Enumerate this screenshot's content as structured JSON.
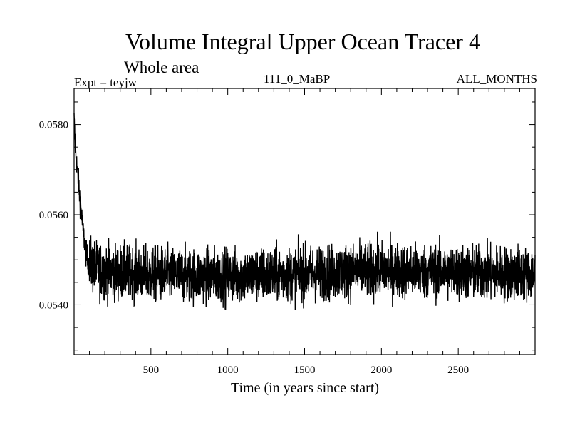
{
  "header": {
    "title": "Volume Integral Upper Ocean Tracer 4",
    "subtitle": "Whole area",
    "expt_label": "Expt = teyjw",
    "run_label": "111_0_MaBP",
    "months_label": "ALL_MONTHS"
  },
  "colors": {
    "line": "#000000",
    "axis": "#000000",
    "background": "#ffffff"
  },
  "chart_data": {
    "type": "line",
    "title": "Volume Integral Upper Ocean Tracer 4",
    "subtitle": "Whole area",
    "xlabel": "Time (in years since start)",
    "ylabel": "",
    "xlim": [
      0,
      3000
    ],
    "ylim": [
      0.0529,
      0.0588
    ],
    "xticks": [
      500,
      1000,
      1500,
      2000,
      2500
    ],
    "xtick_labels": [
      "500",
      "1000",
      "1500",
      "2000",
      "2500"
    ],
    "yticks": [
      0.054,
      0.056,
      0.058
    ],
    "ytick_labels": [
      "0.0540",
      "0.0560",
      "0.0580"
    ],
    "grid": false,
    "series": [
      {
        "name": "Upper Ocean Tracer 4",
        "mean_values": [
          [
            0,
            0.0581
          ],
          [
            10,
            0.0574
          ],
          [
            20,
            0.057
          ],
          [
            40,
            0.0563
          ],
          [
            60,
            0.0556
          ],
          [
            80,
            0.0551
          ],
          [
            100,
            0.0549
          ],
          [
            150,
            0.0548
          ],
          [
            200,
            0.05475
          ],
          [
            400,
            0.0547
          ],
          [
            700,
            0.05465
          ],
          [
            1000,
            0.05465
          ],
          [
            1300,
            0.05467
          ],
          [
            1600,
            0.0547
          ],
          [
            1800,
            0.05475
          ],
          [
            2000,
            0.05478
          ],
          [
            2200,
            0.05475
          ],
          [
            2500,
            0.05472
          ],
          [
            2700,
            0.0547
          ],
          [
            3000,
            0.05468
          ]
        ],
        "noise_amplitude": 0.00045,
        "interannual_sd": 0.0003
      }
    ]
  }
}
